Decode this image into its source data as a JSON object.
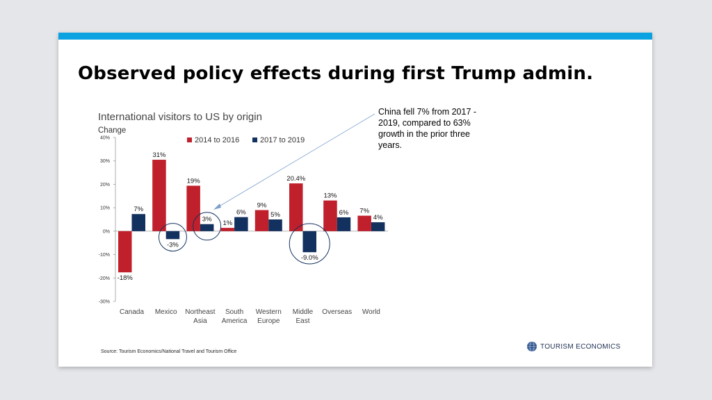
{
  "slide": {
    "headline": "Observed policy effects during first Trump admin.",
    "callout": "China fell 7% from 2017 - 2019, compared to 63% growth in the prior three years.",
    "source": "Source: Tourism Economics/National Travel and Tourism Office",
    "logo_text": "TOURISM ECONOMICS"
  },
  "chart_data": {
    "type": "bar",
    "title": "International visitors to US by origin",
    "ylabel": "Change",
    "xlabel": "",
    "ylim": [
      -30,
      40
    ],
    "y_ticks": [
      "40%",
      "30%",
      "20%",
      "10%",
      "0%",
      "-10%",
      "-20%",
      "-30%"
    ],
    "grid": false,
    "legend_position": "top",
    "categories": [
      [
        "Canada"
      ],
      [
        "Mexico"
      ],
      [
        "Northeast",
        "Asia"
      ],
      [
        "South",
        "America"
      ],
      [
        "Western",
        "Europe"
      ],
      [
        "Middle",
        "East"
      ],
      [
        "Overseas"
      ],
      [
        "World"
      ]
    ],
    "series": [
      {
        "name": "2014 to 2016",
        "color": "#c0202b",
        "values": [
          -17.6,
          30.5,
          19.4,
          1.4,
          9.0,
          20.4,
          13.1,
          6.6
        ],
        "labels": [
          "-18%",
          "31%",
          "19%",
          "1%",
          "9%",
          "20.4%",
          "13%",
          "7%"
        ]
      },
      {
        "name": "2017 to 2019",
        "color": "#13315f",
        "values": [
          7.3,
          -3.4,
          3.0,
          6.0,
          5.0,
          -9.0,
          5.9,
          3.8
        ],
        "labels": [
          "7%",
          "-3%",
          "3%",
          "6%",
          "5%",
          "-9.0%",
          "6%",
          "4%"
        ]
      }
    ],
    "circled_categories": [
      "Mexico",
      "Northeast Asia",
      "Middle East"
    ]
  }
}
